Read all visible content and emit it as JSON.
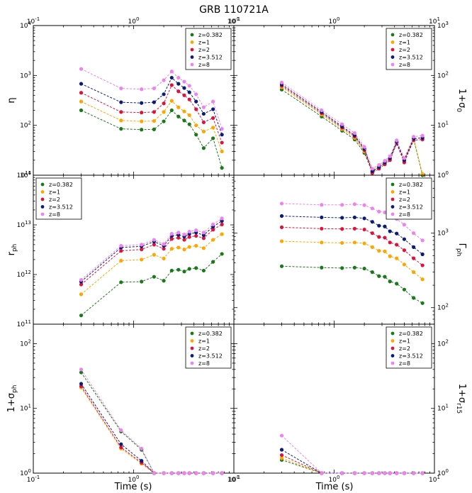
{
  "figure_title": "GRB 110721A",
  "x_label": "Time (s)",
  "series_meta": [
    {
      "name": "z=0.382",
      "color": "#1a7a1a"
    },
    {
      "name": "z=1",
      "color": "#ffa500"
    },
    {
      "name": "z=2",
      "color": "#dc143c"
    },
    {
      "name": "z=3.512",
      "color": "#0b1b78"
    },
    {
      "name": "z=8",
      "color": "#ee82ee"
    }
  ],
  "chart_data": [
    {
      "id": "eta",
      "type": "scatter",
      "position": "top-left",
      "ylabel": "η",
      "xlim": [
        0.1,
        10
      ],
      "ylim": [
        10,
        10000
      ],
      "x": [
        0.3,
        0.75,
        1.2,
        1.6,
        2.0,
        2.4,
        2.8,
        3.2,
        3.6,
        4.2,
        5.0,
        6.2,
        7.6
      ],
      "series": [
        {
          "name": "z=0.382",
          "values": [
            200,
            85,
            82,
            83,
            120,
            200,
            150,
            125,
            105,
            65,
            35,
            55,
            14
          ]
        },
        {
          "name": "z=1",
          "values": [
            300,
            125,
            120,
            122,
            185,
            310,
            230,
            190,
            160,
            100,
            75,
            90,
            30
          ]
        },
        {
          "name": "z=2",
          "values": [
            450,
            185,
            180,
            185,
            275,
            640,
            480,
            400,
            330,
            210,
            115,
            140,
            45
          ]
        },
        {
          "name": "z=3.512",
          "values": [
            680,
            290,
            280,
            290,
            420,
            900,
            680,
            560,
            460,
            300,
            170,
            210,
            65
          ]
        },
        {
          "name": "z=8",
          "values": [
            1350,
            550,
            530,
            550,
            800,
            1200,
            900,
            750,
            620,
            420,
            230,
            300,
            85
          ]
        }
      ]
    },
    {
      "id": "sigma0",
      "type": "scatter",
      "position": "top-right",
      "ylabel": "1+σ0",
      "xlim": [
        0.1,
        10
      ],
      "ylim": [
        1,
        1000
      ],
      "x": [
        0.3,
        0.75,
        1.2,
        1.6,
        2.0,
        2.4,
        2.8,
        3.2,
        3.6,
        4.2,
        5.0,
        6.2,
        7.6
      ],
      "series": [
        {
          "name": "z=0.382",
          "values": [
            52,
            15,
            7.8,
            5.2,
            2.8,
            1.15,
            1.45,
            1.75,
            2.1,
            4.5,
            1.95,
            5.3,
            1.0
          ]
        },
        {
          "name": "z=1",
          "values": [
            58,
            16.5,
            8.4,
            5.6,
            3.0,
            1.25,
            1.55,
            1.85,
            2.2,
            4.7,
            2.05,
            5.6,
            1.05
          ]
        },
        {
          "name": "z=2",
          "values": [
            62,
            17.5,
            9.0,
            6.0,
            3.2,
            1.1,
            1.35,
            1.65,
            2.0,
            4.3,
            1.8,
            5.0,
            5.2
          ]
        },
        {
          "name": "z=3.512",
          "values": [
            66,
            18.5,
            9.5,
            6.3,
            3.4,
            1.2,
            1.45,
            1.8,
            2.2,
            4.6,
            2.0,
            5.4,
            5.6
          ]
        },
        {
          "name": "z=8",
          "values": [
            72,
            20,
            10.5,
            7.0,
            3.7,
            1.35,
            1.6,
            1.95,
            2.4,
            5.0,
            2.2,
            5.9,
            6.2
          ]
        }
      ]
    },
    {
      "id": "rph",
      "type": "scatter",
      "position": "middle-left",
      "ylabel": "rph",
      "xlim": [
        0.1,
        10
      ],
      "ylim": [
        100000000000.0,
        100000000000000.0
      ],
      "x": [
        0.3,
        0.75,
        1.2,
        1.6,
        2.0,
        2.4,
        2.8,
        3.2,
        3.6,
        4.2,
        5.0,
        6.2,
        7.6
      ],
      "series": [
        {
          "name": "z=0.382",
          "values": [
            150000000000.0,
            700000000000.0,
            720000000000.0,
            900000000000.0,
            750000000000.0,
            1200000000000.0,
            1250000000000.0,
            1150000000000.0,
            1300000000000.0,
            1350000000000.0,
            1200000000000.0,
            1800000000000.0,
            2600000000000.0
          ]
        },
        {
          "name": "z=1",
          "values": [
            400000000000.0,
            1900000000000.0,
            2000000000000.0,
            2500000000000.0,
            2100000000000.0,
            3300000000000.0,
            3500000000000.0,
            3200000000000.0,
            3600000000000.0,
            3800000000000.0,
            3400000000000.0,
            5000000000000.0,
            6500000000000.0
          ]
        },
        {
          "name": "z=2",
          "values": [
            630000000000.0,
            3000000000000.0,
            3200000000000.0,
            4000000000000.0,
            3300000000000.0,
            5200000000000.0,
            5500000000000.0,
            5000000000000.0,
            5700000000000.0,
            6000000000000.0,
            5400000000000.0,
            8000000000000.0,
            10200000000000.0
          ]
        },
        {
          "name": "z=3.512",
          "values": [
            720000000000.0,
            3500000000000.0,
            3700000000000.0,
            4600000000000.0,
            3800000000000.0,
            6000000000000.0,
            6300000000000.0,
            5800000000000.0,
            6600000000000.0,
            7000000000000.0,
            6200000000000.0,
            9200000000000.0,
            12000000000000.0
          ]
        },
        {
          "name": "z=8",
          "values": [
            780000000000.0,
            3800000000000.0,
            4000000000000.0,
            5000000000000.0,
            4100000000000.0,
            6600000000000.0,
            7000000000000.0,
            6400000000000.0,
            7300000000000.0,
            7800000000000.0,
            7000000000000.0,
            10200000000000.0,
            13500000000000.0
          ]
        }
      ]
    },
    {
      "id": "gammaph",
      "type": "scatter",
      "position": "middle-right",
      "ylabel": "Γph",
      "xlim": [
        0.1,
        10
      ],
      "ylim": [
        60,
        6000
      ],
      "x": [
        0.3,
        0.75,
        1.2,
        1.6,
        2.0,
        2.4,
        2.8,
        3.2,
        3.6,
        4.2,
        5.0,
        6.2,
        7.6
      ],
      "series": [
        {
          "name": "z=0.382",
          "values": [
            360,
            345,
            340,
            345,
            335,
            300,
            265,
            260,
            225,
            210,
            175,
            135,
            115
          ]
        },
        {
          "name": "z=1",
          "values": [
            780,
            750,
            740,
            750,
            730,
            650,
            580,
            570,
            490,
            460,
            380,
            300,
            240
          ]
        },
        {
          "name": "z=2",
          "values": [
            1200,
            1150,
            1140,
            1150,
            1120,
            1000,
            890,
            870,
            750,
            700,
            590,
            460,
            370
          ]
        },
        {
          "name": "z=3.512",
          "values": [
            1700,
            1630,
            1610,
            1630,
            1580,
            1420,
            1260,
            1230,
            1060,
            990,
            830,
            650,
            520
          ]
        },
        {
          "name": "z=8",
          "values": [
            2500,
            2400,
            2400,
            2450,
            2380,
            2150,
            1950,
            1900,
            1650,
            1550,
            1300,
            1000,
            800
          ]
        }
      ]
    },
    {
      "id": "sigmaph",
      "type": "scatter",
      "position": "bottom-left",
      "ylabel": "1+σph",
      "xlim": [
        0.1,
        10
      ],
      "ylim": [
        1,
        200
      ],
      "x": [
        0.3,
        0.75,
        1.2,
        1.6,
        2.0,
        2.4,
        2.8,
        3.2,
        3.6,
        4.2,
        5.0,
        6.2,
        7.6
      ],
      "series": [
        {
          "name": "z=0.382",
          "values": [
            36,
            4.4,
            2.3,
            1.0,
            1.0,
            1.0,
            1.0,
            1.0,
            1.0,
            1.0,
            1.0,
            1.0,
            1.0
          ]
        },
        {
          "name": "z=1",
          "values": [
            21,
            2.4,
            1.4,
            1.0,
            1.0,
            1.0,
            1.0,
            1.0,
            1.0,
            1.0,
            1.0,
            1.0,
            1.0
          ]
        },
        {
          "name": "z=2",
          "values": [
            22,
            2.5,
            1.45,
            1.0,
            1.0,
            1.0,
            1.0,
            1.0,
            1.0,
            1.0,
            1.0,
            1.0,
            1.0
          ]
        },
        {
          "name": "z=3.512",
          "values": [
            24,
            2.8,
            1.55,
            1.0,
            1.0,
            1.0,
            1.0,
            1.0,
            1.0,
            1.0,
            1.0,
            1.0,
            1.0
          ]
        },
        {
          "name": "z=8",
          "values": [
            40,
            4.6,
            2.4,
            1.0,
            1.0,
            1.0,
            1.0,
            1.0,
            1.0,
            1.0,
            1.0,
            1.0,
            1.0
          ]
        }
      ]
    },
    {
      "id": "sigmar15",
      "type": "scatter",
      "position": "bottom-right",
      "ylabel": "1+σr15",
      "xlim": [
        0.1,
        10
      ],
      "ylim": [
        1,
        200
      ],
      "x": [
        0.3,
        0.75,
        1.2,
        1.6,
        2.0,
        2.4,
        2.8,
        3.2,
        3.6,
        4.2,
        5.0,
        6.2,
        7.6
      ],
      "series": [
        {
          "name": "z=0.382",
          "values": [
            1.6,
            1.0,
            1.0,
            1.0,
            1.0,
            1.0,
            1.0,
            1.0,
            1.0,
            1.0,
            1.0,
            1.0,
            1.0
          ]
        },
        {
          "name": "z=1",
          "values": [
            1.7,
            1.0,
            1.0,
            1.0,
            1.0,
            1.0,
            1.0,
            1.0,
            1.0,
            1.0,
            1.0,
            1.0,
            1.0
          ]
        },
        {
          "name": "z=2",
          "values": [
            1.9,
            1.0,
            1.0,
            1.0,
            1.0,
            1.0,
            1.0,
            1.0,
            1.0,
            1.0,
            1.0,
            1.0,
            1.0
          ]
        },
        {
          "name": "z=3.512",
          "values": [
            2.3,
            1.0,
            1.0,
            1.0,
            1.0,
            1.0,
            1.0,
            1.0,
            1.0,
            1.0,
            1.0,
            1.0,
            1.0
          ]
        },
        {
          "name": "z=8",
          "values": [
            3.8,
            1.0,
            1.0,
            1.0,
            1.0,
            1.0,
            1.0,
            1.0,
            1.0,
            1.0,
            1.0,
            1.0,
            1.0
          ]
        }
      ]
    }
  ]
}
